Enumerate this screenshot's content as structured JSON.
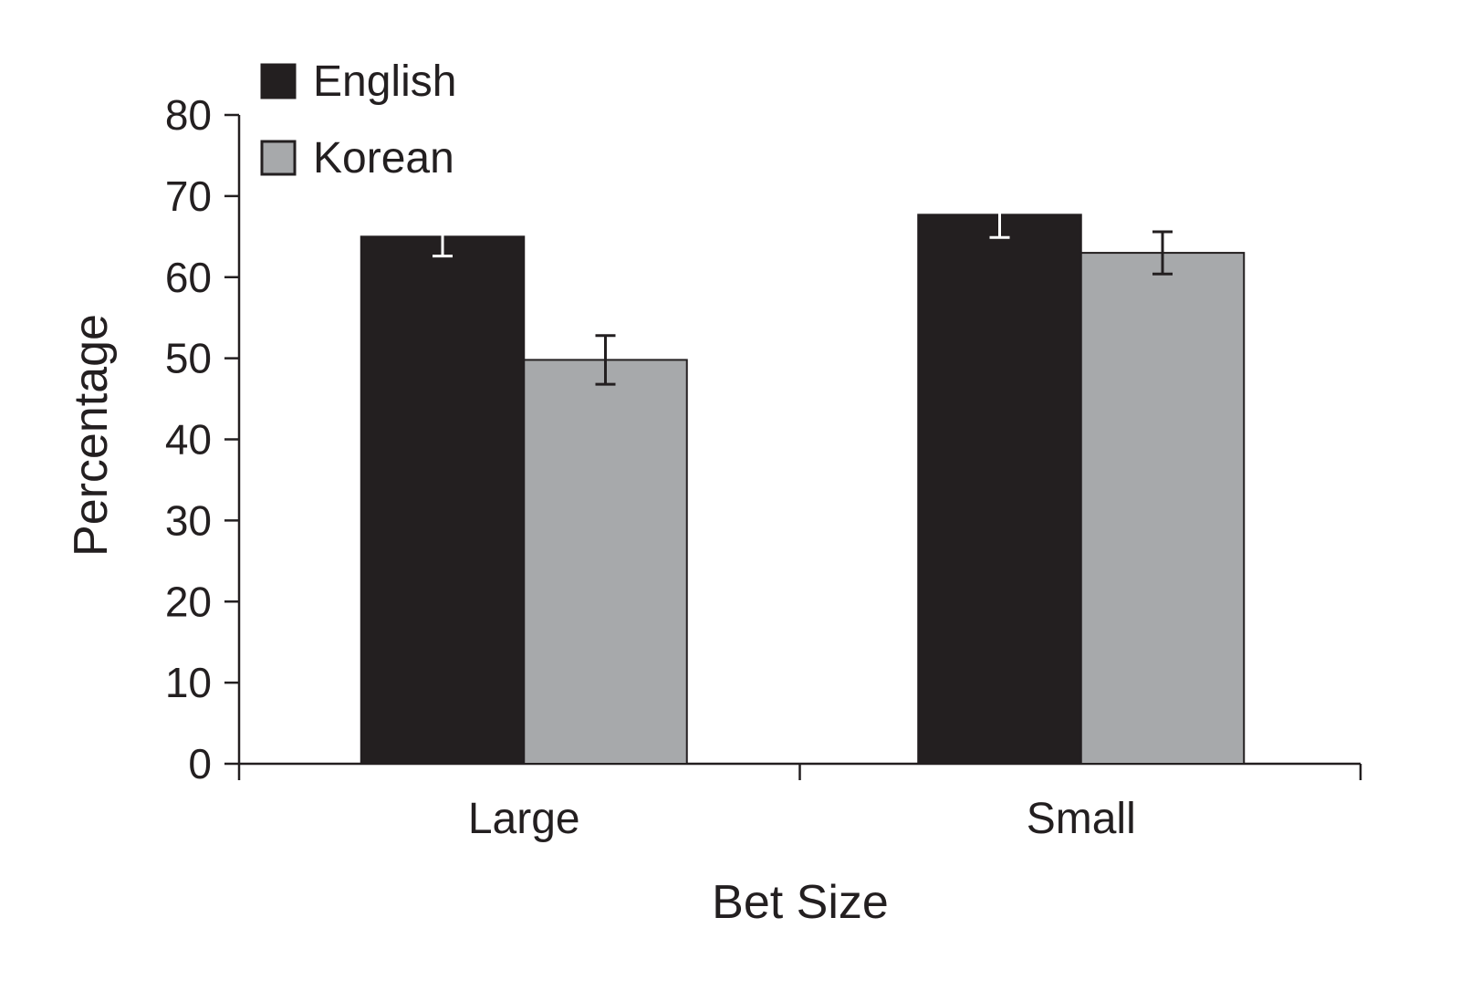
{
  "chart_data": {
    "type": "bar",
    "title": "",
    "xlabel": "Bet Size",
    "ylabel": "Percentage",
    "ylim": [
      0,
      80
    ],
    "yticks": [
      0,
      10,
      20,
      30,
      40,
      50,
      60,
      70,
      80
    ],
    "categories": [
      "Large",
      "Small"
    ],
    "series": [
      {
        "name": "English",
        "color": "#231f20",
        "error_color": "#ffffff",
        "values": [
          65,
          67.7
        ],
        "errors": [
          2.4,
          2.8
        ]
      },
      {
        "name": "Korean",
        "color": "#a7a9ab",
        "error_color": "#231f20",
        "values": [
          49.8,
          63
        ],
        "errors": [
          3.0,
          2.6
        ]
      }
    ],
    "legend": "top-left",
    "grid": false
  }
}
